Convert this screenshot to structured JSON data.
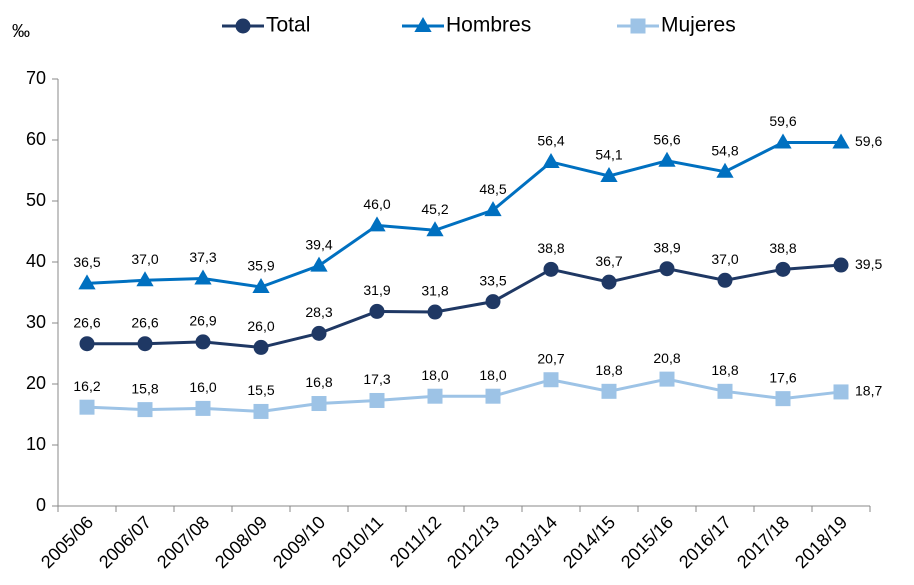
{
  "chart_data": {
    "type": "line",
    "y_label": "‰",
    "categories": [
      "2005/06",
      "2006/07",
      "2007/08",
      "2008/09",
      "2009/10",
      "2010/11",
      "2011/12",
      "2012/13",
      "2013/14",
      "2014/15",
      "2015/16",
      "2016/17",
      "2017/18",
      "2018/19"
    ],
    "series": [
      {
        "name": "Total",
        "color": "#1f3864",
        "marker": "circle",
        "values": [
          26.6,
          26.6,
          26.9,
          26.0,
          28.3,
          31.9,
          31.8,
          33.5,
          38.8,
          36.7,
          38.9,
          37.0,
          38.8,
          39.5
        ],
        "value_labels": [
          "26,6",
          "26,6",
          "26,9",
          "26,0",
          "28,3",
          "31,9",
          "31,8",
          "33,5",
          "38,8",
          "36,7",
          "38,9",
          "37,0",
          "38,8",
          "39,5"
        ]
      },
      {
        "name": "Hombres",
        "color": "#0070c0",
        "marker": "triangle",
        "values": [
          36.5,
          37.0,
          37.3,
          35.9,
          39.4,
          46.0,
          45.2,
          48.5,
          56.4,
          54.1,
          56.6,
          54.8,
          59.6,
          59.6
        ],
        "value_labels": [
          "36,5",
          "37,0",
          "37,3",
          "35,9",
          "39,4",
          "46,0",
          "45,2",
          "48,5",
          "56,4",
          "54,1",
          "56,6",
          "54,8",
          "59,6",
          "59,6"
        ]
      },
      {
        "name": "Mujeres",
        "color": "#9dc3e6",
        "marker": "square",
        "values": [
          16.2,
          15.8,
          16.0,
          15.5,
          16.8,
          17.3,
          18.0,
          18.0,
          20.7,
          18.8,
          20.8,
          18.8,
          17.6,
          18.7
        ],
        "value_labels": [
          "16,2",
          "15,8",
          "16,0",
          "15,5",
          "16,8",
          "17,3",
          "18,0",
          "18,0",
          "20,7",
          "18,8",
          "20,8",
          "18,8",
          "17,6",
          "18,7"
        ]
      }
    ],
    "ylim": [
      0,
      70
    ],
    "yticks": [
      0,
      10,
      20,
      30,
      40,
      50,
      60,
      70
    ],
    "grid": false,
    "legend": "top"
  }
}
